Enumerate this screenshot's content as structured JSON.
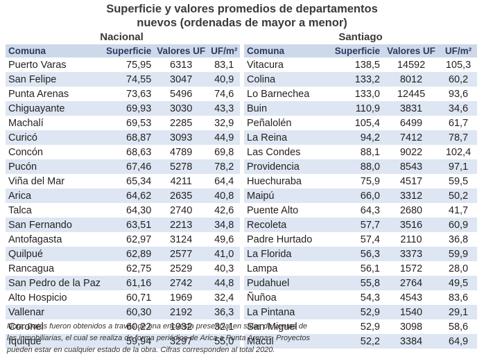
{
  "title_line1": "Superficie y valores promedios de departamentos",
  "title_line2": "nuevos (ordenadas de mayor a menor)",
  "nacional": {
    "heading": "Nacional",
    "columns": [
      "Comuna",
      "Superficie",
      "Valores UF",
      "UF/m²"
    ],
    "rows": [
      [
        "Puerto Varas",
        "75,95",
        "6313",
        "83,1"
      ],
      [
        "San Felipe",
        "74,55",
        "3047",
        "40,9"
      ],
      [
        "Punta Arenas",
        "73,63",
        "5496",
        "74,6"
      ],
      [
        "Chiguayante",
        "69,93",
        "3030",
        "43,3"
      ],
      [
        "Machalí",
        "69,53",
        "2285",
        "32,9"
      ],
      [
        "Curicó",
        "68,87",
        "3093",
        "44,9"
      ],
      [
        "Concón",
        "68,63",
        "4789",
        "69,8"
      ],
      [
        "Pucón",
        "67,46",
        "5278",
        "78,2"
      ],
      [
        "Viña del Mar",
        "65,34",
        "4211",
        "64,4"
      ],
      [
        "Arica",
        "64,62",
        "2635",
        "40,8"
      ],
      [
        "Talca",
        "64,30",
        "2740",
        "42,6"
      ],
      [
        "San Fernando",
        "63,51",
        "2213",
        "34,8"
      ],
      [
        "Antofagasta",
        "62,97",
        "3124",
        "49,6"
      ],
      [
        "Quilpué",
        "62,89",
        "2577",
        "41,0"
      ],
      [
        "Rancagua",
        "62,75",
        "2529",
        "40,3"
      ],
      [
        "San Pedro de la Paz",
        "61,16",
        "2742",
        "44,8"
      ],
      [
        "Alto Hospicio",
        "60,71",
        "1969",
        "32,4"
      ],
      [
        "Vallenar",
        "60,30",
        "2192",
        "36,3"
      ],
      [
        "Coronel",
        "60,22",
        "1932",
        "32,1"
      ],
      [
        "Iquique",
        "59,94",
        "3297",
        "55,0"
      ]
    ]
  },
  "santiago": {
    "heading": "Santiago",
    "columns": [
      "Comuna",
      "Superficie",
      "Valores UF",
      "UF/m²"
    ],
    "rows": [
      [
        "Vitacura",
        "138,5",
        "14592",
        "105,3"
      ],
      [
        "Colina",
        "133,2",
        "8012",
        "60,2"
      ],
      [
        "Lo Barnechea",
        "133,0",
        "12445",
        "93,6"
      ],
      [
        "Buin",
        "110,9",
        "3831",
        "34,6"
      ],
      [
        "Peñalolén",
        "105,4",
        "6499",
        "61,7"
      ],
      [
        "La Reina",
        "94,2",
        "7412",
        "78,7"
      ],
      [
        "Las Condes",
        "88,1",
        "9022",
        "102,4"
      ],
      [
        "Providencia",
        "88,0",
        "8543",
        "97,1"
      ],
      [
        "Huechuraba",
        "75,9",
        "4517",
        "59,5"
      ],
      [
        "Maipú",
        "66,0",
        "3312",
        "50,2"
      ],
      [
        "Puente Alto",
        "64,3",
        "2680",
        "41,7"
      ],
      [
        "Recoleta",
        "57,7",
        "3516",
        "60,9"
      ],
      [
        "Padre Hurtado",
        "57,4",
        "2110",
        "36,8"
      ],
      [
        "La Florida",
        "56,3",
        "3373",
        "59,9"
      ],
      [
        "Lampa",
        "56,1",
        "1572",
        "28,0"
      ],
      [
        "Pudahuel",
        "55,8",
        "2764",
        "49,5"
      ],
      [
        "Ñuñoa",
        "54,3",
        "4543",
        "83,6"
      ],
      [
        "La Pintana",
        "52,9",
        "1540",
        "29,1"
      ],
      [
        "San Miguel",
        "52,9",
        "3098",
        "58,6"
      ],
      [
        "Macul",
        "52,2",
        "3384",
        "64,9"
      ]
    ]
  },
  "note_lines": [
    "Nota: Datos fueron obtenidos a través de una encuesta presencial en salas de ventas de",
    "las inmobiliarias, el cual se realiza de forma periódica de Arica a Punta Arenas. Proyectos",
    "pueden estar en cualquier estado de la obra. Cifras corresponden al total 2020."
  ],
  "colors": {
    "header_bg": "#cdd9ea",
    "stripe_bg": "#dde6f2",
    "header_text": "#2b3a5c"
  }
}
